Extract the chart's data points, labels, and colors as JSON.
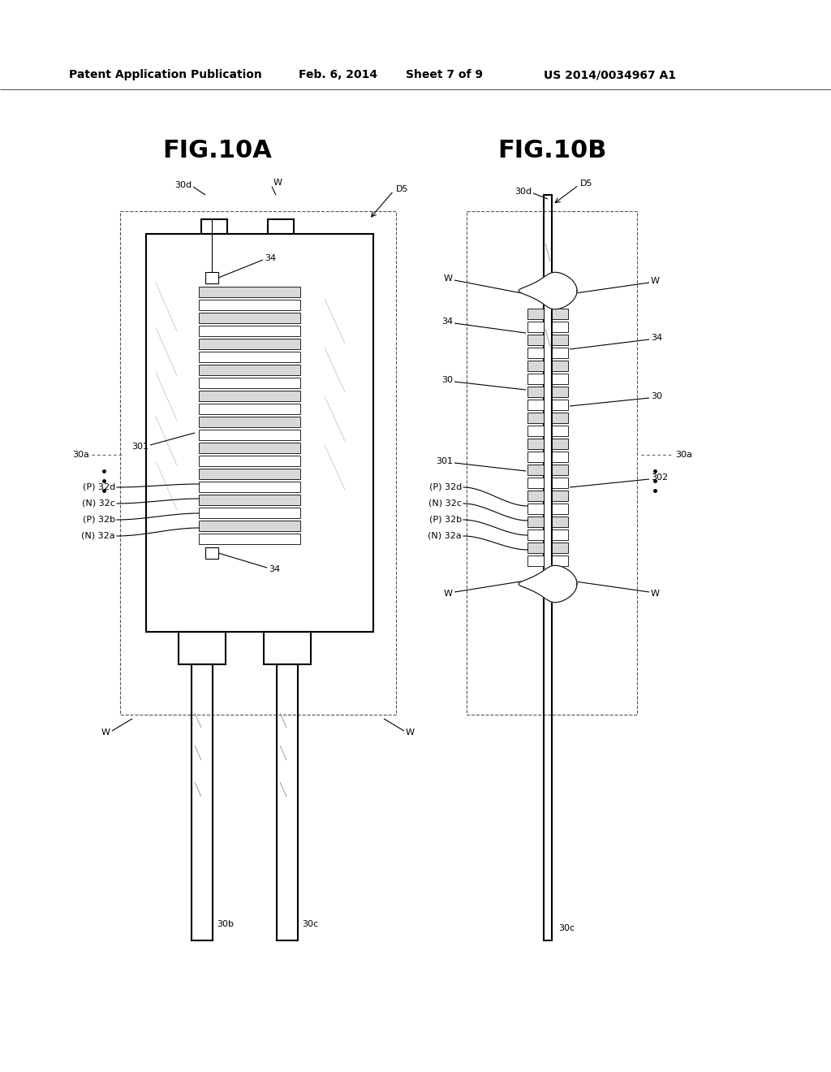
{
  "bg_color": "#ffffff",
  "header_text": "Patent Application Publication",
  "header_date": "Feb. 6, 2014",
  "header_sheet": "Sheet 7 of 9",
  "header_patent": "US 2014/0034967 A1",
  "fig_title_a": "FIG.10A",
  "fig_title_b": "FIG.10B",
  "line_color": "#000000",
  "line_width": 1.5,
  "thin_line": 0.8,
  "label_fontsize": 8,
  "title_fontsize": 22,
  "header_fontsize": 10
}
